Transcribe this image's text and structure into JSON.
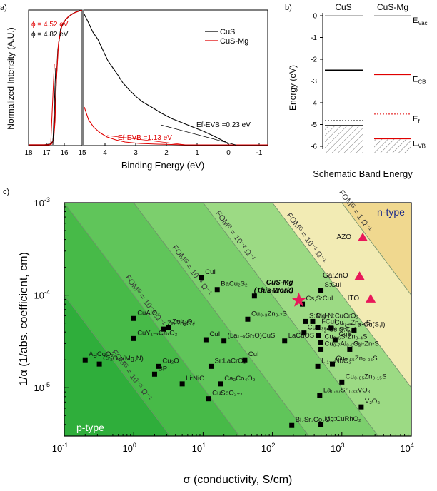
{
  "chart_data": [
    {
      "panel": "a)",
      "type": "line",
      "ylabel": "Normalized Intensity (A.U.)",
      "xlabel": "Binding Energy (eV)",
      "left_ticks": [
        "18",
        "17",
        "16",
        "15"
      ],
      "right_ticks": [
        "4",
        "3",
        "2",
        "1",
        "0",
        "-1"
      ],
      "legend": [
        "CuS",
        "CuS-Mg"
      ],
      "annotations": {
        "phi_mg": "ϕ = 4.52 eV",
        "phi_cus": "ϕ = 4.82 eV",
        "ef_cus": "Eₒ-Eᵥ₆ =0.23 eV",
        "ef_mg": "Eₒ-Eᵥ₆ =1.13 eV"
      },
      "ef_cus_text": "Ef-EVB =0.23 eV",
      "ef_mg_text": "Ef-EVB =1.13 eV",
      "colors": {
        "cus": "#000000",
        "mg": "#e00000"
      }
    },
    {
      "panel": "b)",
      "type": "diagram",
      "columns": [
        "CuS",
        "CuS-Mg"
      ],
      "ylabel": "Energy (eV)",
      "xlabel": "Schematic Band Energy",
      "yticks": [
        "0",
        "-1",
        "-2",
        "-3",
        "-4",
        "-5",
        "-6"
      ],
      "levels": {
        "CuS": {
          "vac": 0,
          "cb": -2.5,
          "ef": -4.82,
          "vb": -5.05
        },
        "CuS-Mg": {
          "vac": 0,
          "cb": -2.7,
          "ef": -4.52,
          "vb": -5.65
        }
      },
      "level_labels": {
        "vac": "E",
        "vac_sub": "Vac",
        "cb": "E",
        "cb_sub": "CB",
        "ef": "E",
        "ef_sub": "f",
        "vb": "E",
        "vb_sub": "VB"
      }
    },
    {
      "panel": "c)",
      "type": "scatter",
      "xlabel": "σ (conductivity, S/cm)",
      "ylabel": "1/α (1/abs. coefficient, cm)",
      "xscale": "log",
      "yscale": "log",
      "xlim": [
        0.1,
        10000
      ],
      "ylim": [
        3e-06,
        0.001
      ],
      "xticks": [
        {
          "v": 0.1,
          "base": "10",
          "exp": "-1"
        },
        {
          "v": 1,
          "base": "10",
          "exp": "0"
        },
        {
          "v": 10,
          "base": "10",
          "exp": "1"
        },
        {
          "v": 100,
          "base": "10",
          "exp": "2"
        },
        {
          "v": 1000,
          "base": "10",
          "exp": "3"
        },
        {
          "v": 10000,
          "base": "10",
          "exp": "4"
        }
      ],
      "yticks": [
        {
          "v": 1e-05,
          "base": "10",
          "exp": "-5"
        },
        {
          "v": 0.0001,
          "base": "10",
          "exp": "-4"
        },
        {
          "v": 0.001,
          "base": "10",
          "exp": "-3"
        }
      ],
      "fom_labels": [
        "10⁻⁵ Ω⁻¹",
        "10⁻⁴ Ω⁻¹",
        "10⁻³ Ω⁻¹",
        "10⁻² Ω⁻¹",
        "10⁻¹ Ω⁻¹",
        "1 Ω⁻¹"
      ],
      "fom_prefix": "FOMᴳ =",
      "fom_values": [
        1e-05,
        0.0001,
        0.001,
        0.01,
        0.1,
        1
      ],
      "region_labels": {
        "p": "p-type",
        "n": "n-type"
      },
      "highlight": {
        "label1": "CuS-Mg",
        "label2": "(This Work)",
        "x": 240,
        "y": 8.8e-05
      },
      "p_type": [
        {
          "label": "CuI",
          "x": 9.5,
          "y": 0.000155
        },
        {
          "label": "BaCu₂S₂",
          "x": 16,
          "y": 0.000115
        },
        {
          "label": "Cu₀.₁Zn₀.₉S",
          "x": 55,
          "y": 9.8e-05
        },
        {
          "label": "CuAlO₂",
          "x": 1,
          "y": 5.6e-05
        },
        {
          "label": "ZnIr₂O₄",
          "x": 3.2,
          "y": 4.5e-05
        },
        {
          "label": "ZnRh₂O₄",
          "x": 2.7,
          "y": 4.3e-05
        },
        {
          "label": "Cu₀.₃Zn₀.₇S",
          "x": 44,
          "y": 5.5e-05
        },
        {
          "label": "CuY₁₋ₓCaₓO₂",
          "x": 1,
          "y": 3.4e-05
        },
        {
          "label": "CuI",
          "x": 11,
          "y": 3.3e-05
        },
        {
          "label": "(La₁₋ₓSrₓO)CuS",
          "x": 20,
          "y": 3.2e-05
        },
        {
          "label": "AgCoO₂",
          "x": 0.2,
          "y": 2e-05
        },
        {
          "label": "Cr₂O₃:(Mg,N)",
          "x": 0.32,
          "y": 1.8e-05
        },
        {
          "label": "Cu₂O",
          "x": 2.3,
          "y": 1.7e-05
        },
        {
          "label": "BP",
          "x": 2,
          "y": 1.4e-05
        },
        {
          "label": "Li:NiO",
          "x": 5,
          "y": 1.1e-05
        },
        {
          "label": "Sr:LaCrO₃",
          "x": 13,
          "y": 1.7e-05
        },
        {
          "label": "CuI",
          "x": 40,
          "y": 2e-05
        },
        {
          "label": "Ca₃Co₄O₉",
          "x": 18,
          "y": 1.1e-05
        },
        {
          "label": "CuScO₂₊ₓ",
          "x": 12,
          "y": 7.6e-06
        },
        {
          "label": "Bi₂Sr₂Co₂O₈",
          "x": 190,
          "y": 3.9e-06
        },
        {
          "label": "Mg:CuRhO₂",
          "x": 500,
          "y": 4e-06
        },
        {
          "label": "S:CuI",
          "x": 500,
          "y": 0.000112
        },
        {
          "label": "Cs,S:CuI",
          "x": 270,
          "y": 8e-05
        },
        {
          "label": "Mg-N:CuCrO₂",
          "x": 380,
          "y": 5.2e-05
        },
        {
          "label": "S:CuI",
          "x": 300,
          "y": 5.2e-05
        },
        {
          "label": "I-CuI",
          "x": 450,
          "y": 4.5e-05
        },
        {
          "label": "Cu₀.₃₅Zn₀.₆₅S",
          "x": 285,
          "y": 3.9e-05
        },
        {
          "label": "I₂-Cs,S:CuI",
          "x": 460,
          "y": 3.7e-05
        },
        {
          "label": "LaCuOS",
          "x": 150,
          "y": 3.2e-05
        },
        {
          "label": "Cu₀.₄Zn₀.₆S",
          "x": 700,
          "y": 4.4e-05
        },
        {
          "label": "a-Cu(S,I)",
          "x": 1500,
          "y": 4.2e-05
        },
        {
          "label": "CuS",
          "x": 800,
          "y": 3.3e-05
        },
        {
          "label": "Cu₀.₆S-Zn₀.₄S",
          "x": 500,
          "y": 3.1e-05
        },
        {
          "label": "Cu-Zn-S",
          "x": 1300,
          "y": 2.6e-05
        },
        {
          "label": "Cu₀.₇Al₀.₃S₂",
          "x": 500,
          "y": 2.6e-05
        },
        {
          "label": "Cu₀.₆₅Zn₀.₃₅S",
          "x": 730,
          "y": 1.8e-05
        },
        {
          "label": "Li₁₋ₓNbO₂",
          "x": 450,
          "y": 1.7e-05
        },
        {
          "label": "Cu₀.₈₅Zn₀.₁₅S",
          "x": 1000,
          "y": 1.15e-05
        },
        {
          "label": "La₀.₆₇Sr₀.₃₃VO₃",
          "x": 480,
          "y": 8.2e-06
        },
        {
          "label": "V₂O₃",
          "x": 1900,
          "y": 6.2e-06
        }
      ],
      "n_type": [
        {
          "label": "AZO",
          "x": 2000,
          "y": 0.00042
        },
        {
          "label": "Ga:ZnO",
          "x": 1800,
          "y": 0.00016
        },
        {
          "label": "ITO",
          "x": 2600,
          "y": 9.1e-05
        }
      ],
      "colors": {
        "n_marker": "#e8185a",
        "p_marker": "#000000",
        "star": "#e8185a"
      }
    }
  ]
}
